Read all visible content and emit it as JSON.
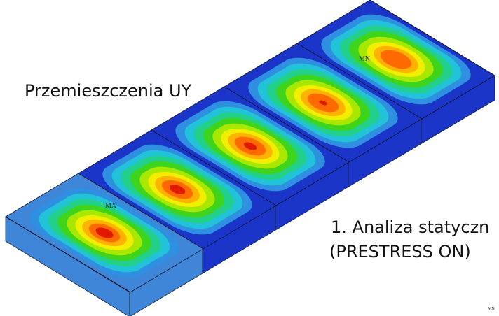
{
  "labels": {
    "title": "Przemieszczenia UY",
    "analysis_line1": "1. Analiza statyczn",
    "analysis_line2": "(PRESTRESS ON)",
    "max_marker": "MX",
    "min_marker": "MN",
    "corner_marker": "MN"
  }
}
